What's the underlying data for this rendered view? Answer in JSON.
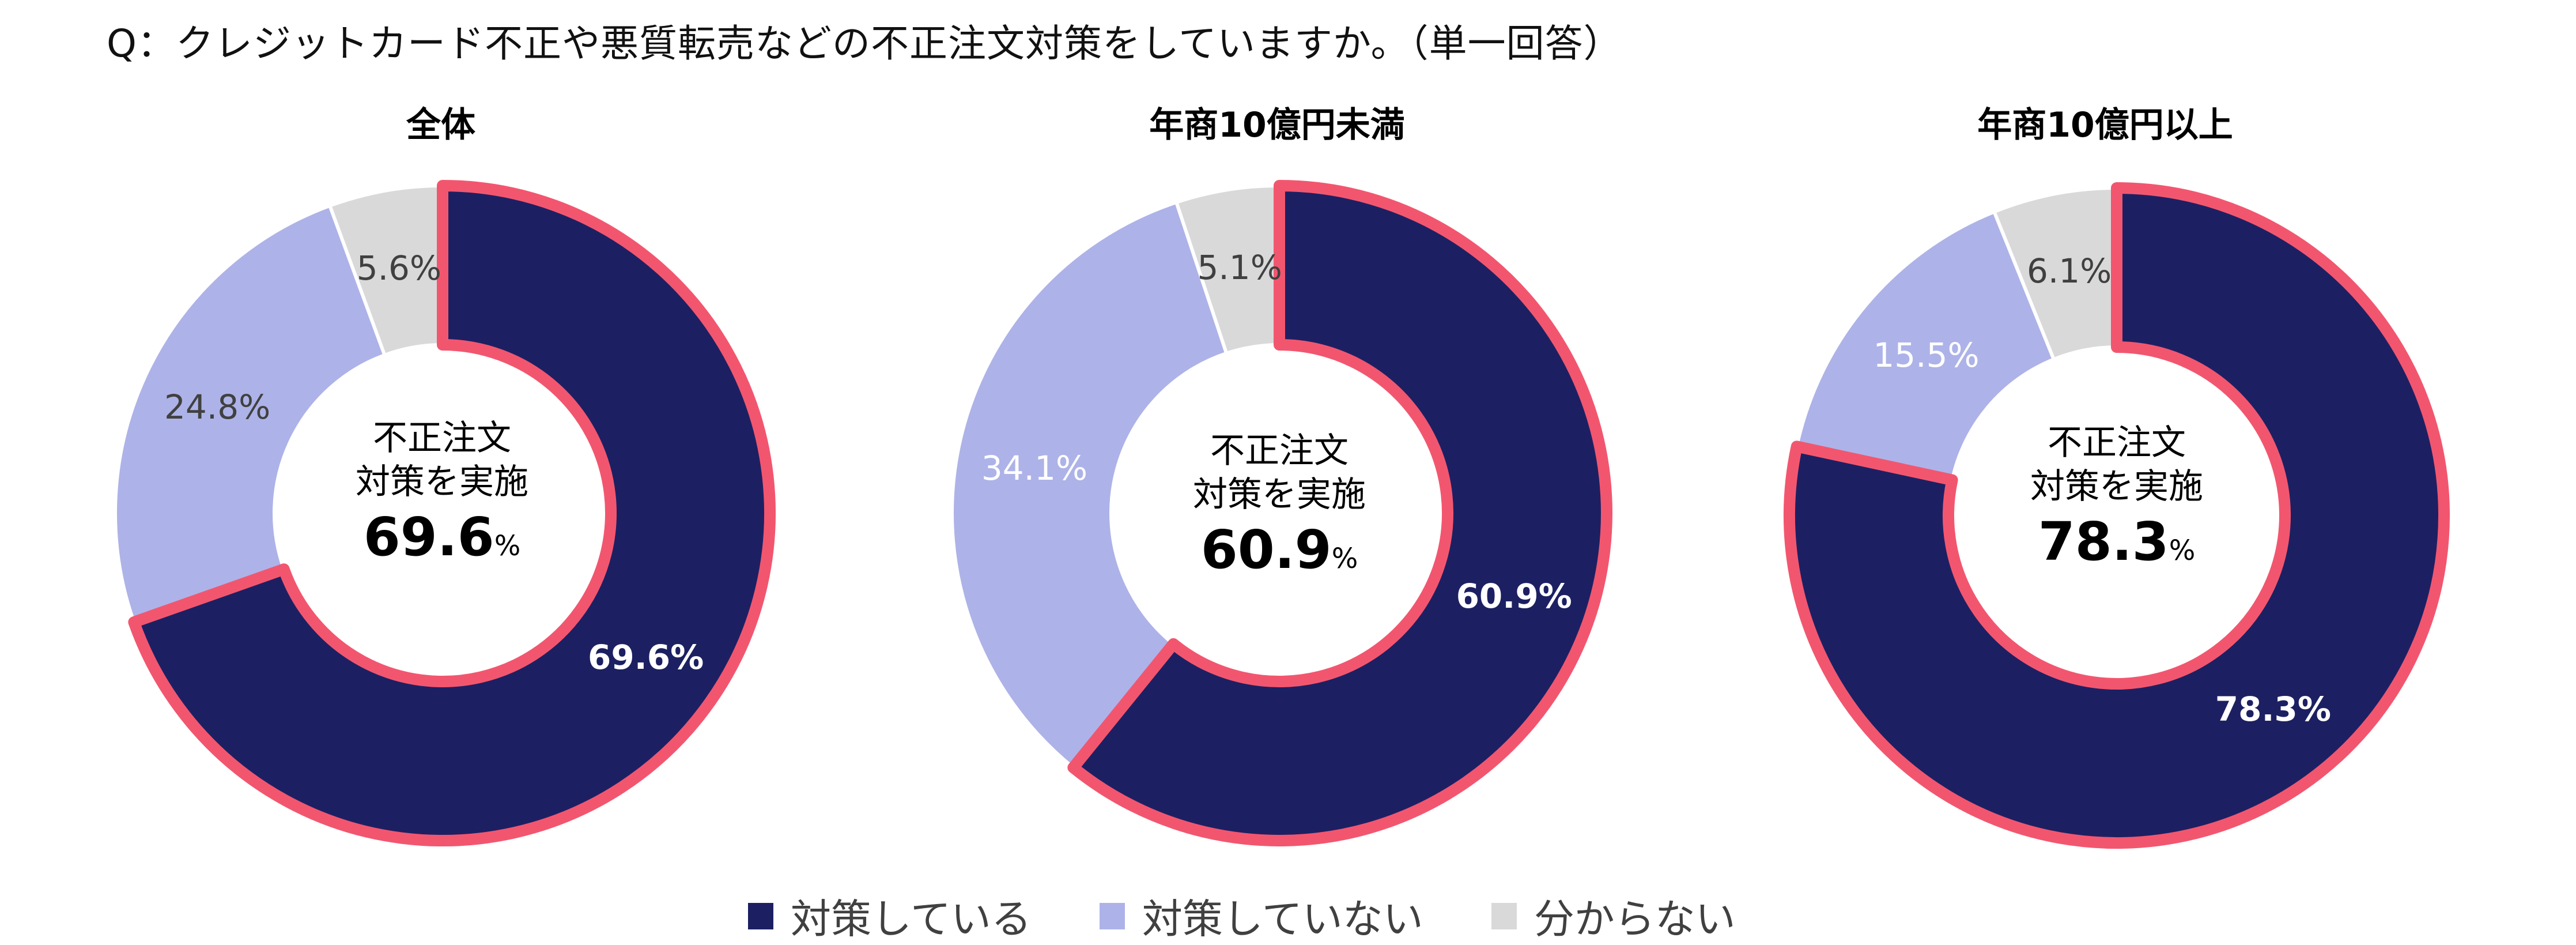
{
  "title": "Q：クレジットカード不正や悪質転売などの不正注文対策をしていますか。（単一回答）",
  "colors": {
    "implemented": "#1C2062",
    "not_implemented": "#ADB3E8",
    "unknown": "#D9D9D9",
    "highlight_border": "#F2566F",
    "label_dark": "#404040",
    "label_light": "#FFFFFF"
  },
  "center_caption": {
    "line1": "不正注文",
    "line2": "対策を実施",
    "percent_sign": "%"
  },
  "legend": [
    {
      "key": "implemented",
      "label": "対策している"
    },
    {
      "key": "not_implemented",
      "label": "対策していない"
    },
    {
      "key": "unknown",
      "label": "分からない"
    }
  ],
  "charts": [
    {
      "title": "全体",
      "center_value": "69.6",
      "slices": [
        {
          "key": "implemented",
          "label": "69.6%",
          "label_color": "light",
          "label_bold": true
        },
        {
          "key": "not_implemented",
          "label": "24.8%",
          "label_color": "dark",
          "label_bold": false
        },
        {
          "key": "unknown",
          "label": "5.6%",
          "label_color": "dark",
          "label_bold": false
        }
      ]
    },
    {
      "title": "年商10億円未満",
      "center_value": "60.9",
      "slices": [
        {
          "key": "implemented",
          "label": "60.9%",
          "label_color": "light",
          "label_bold": true
        },
        {
          "key": "not_implemented",
          "label": "34.1%",
          "label_color": "light",
          "label_bold": false
        },
        {
          "key": "unknown",
          "label": "5.1%",
          "label_color": "dark",
          "label_bold": false
        }
      ]
    },
    {
      "title": "年商10億円以上",
      "center_value": "78.3",
      "slices": [
        {
          "key": "implemented",
          "label": "78.3%",
          "label_color": "light",
          "label_bold": true
        },
        {
          "key": "not_implemented",
          "label": "15.5%",
          "label_color": "light",
          "label_bold": false
        },
        {
          "key": "unknown",
          "label": "6.1%",
          "label_color": "dark",
          "label_bold": false
        }
      ]
    }
  ],
  "chart_data": [
    {
      "type": "pie",
      "subtype": "donut",
      "title": "全体",
      "categories": [
        "対策している",
        "対策していない",
        "分からない"
      ],
      "values": [
        69.6,
        24.8,
        5.6
      ],
      "unit": "%",
      "center_label": "不正注文 対策を実施 69.6%",
      "highlighted": "対策している",
      "legend_position": "bottom"
    },
    {
      "type": "pie",
      "subtype": "donut",
      "title": "年商10億円未満",
      "categories": [
        "対策している",
        "対策していない",
        "分からない"
      ],
      "values": [
        60.9,
        34.1,
        5.1
      ],
      "unit": "%",
      "center_label": "不正注文 対策を実施 60.9%",
      "highlighted": "対策している",
      "legend_position": "bottom"
    },
    {
      "type": "pie",
      "subtype": "donut",
      "title": "年商10億円以上",
      "categories": [
        "対策している",
        "対策していない",
        "分からない"
      ],
      "values": [
        78.3,
        15.5,
        6.1
      ],
      "unit": "%",
      "center_label": "不正注文 対策を実施 78.3%",
      "highlighted": "対策している",
      "legend_position": "bottom"
    }
  ]
}
